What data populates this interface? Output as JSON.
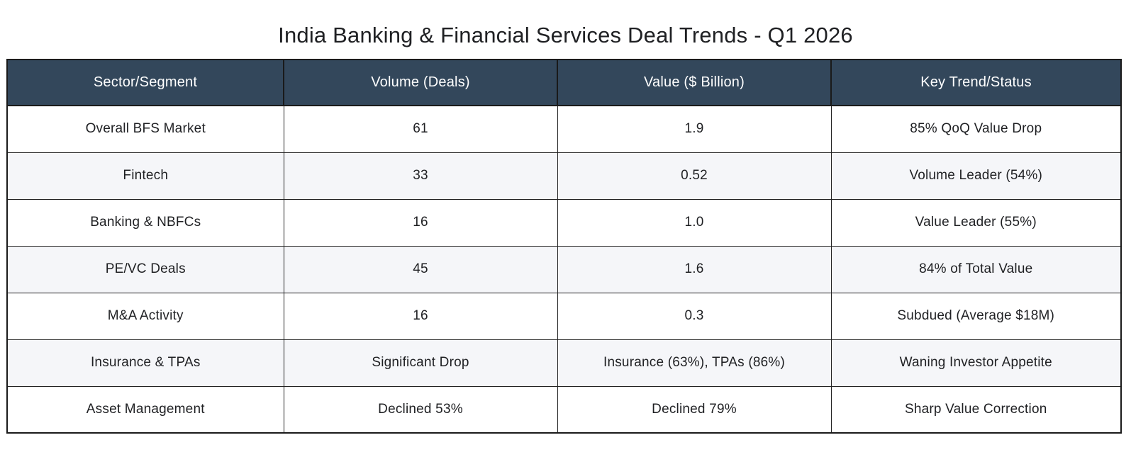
{
  "chart_data": {
    "type": "table",
    "title": "India Banking & Financial Services Deal Trends - Q1 2026",
    "columns": [
      "Sector/Segment",
      "Volume (Deals)",
      "Value ($ Billion)",
      "Key Trend/Status"
    ],
    "rows": [
      [
        "Overall BFS Market",
        "61",
        "1.9",
        "85% QoQ Value Drop"
      ],
      [
        "Fintech",
        "33",
        "0.52",
        "Volume Leader (54%)"
      ],
      [
        "Banking & NBFCs",
        "16",
        "1.0",
        "Value Leader (55%)"
      ],
      [
        "PE/VC Deals",
        "45",
        "1.6",
        "84% of Total Value"
      ],
      [
        "M&A Activity",
        "16",
        "0.3",
        "Subdued (Average $18M)"
      ],
      [
        "Insurance & TPAs",
        "Significant Drop",
        "Insurance (63%), TPAs (86%)",
        "Waning Investor Appetite"
      ],
      [
        "Asset Management",
        "Declined 53%",
        "Declined 79%",
        "Sharp Value Correction"
      ]
    ],
    "layout_hints": {
      "header_position": "top",
      "row_striping": "alternating",
      "grid": true
    }
  },
  "colors": {
    "header_bg": "#33475B",
    "header_text": "#FFFFFF",
    "stripe_row_bg": "#F5F6F9",
    "plain_row_bg": "#FFFFFF",
    "border": "#1A1A1A",
    "body_text": "#1F2023",
    "title_text": "#1F2023"
  }
}
